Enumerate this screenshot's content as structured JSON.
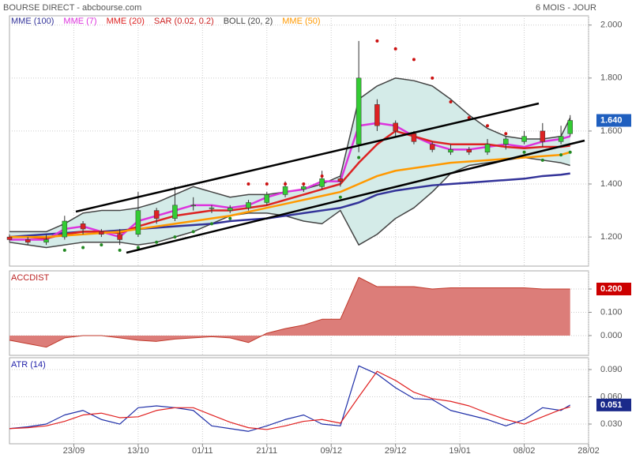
{
  "header": {
    "title": "BOURSE DIRECT - abcbourse.com",
    "period": "6 MOIS - JOUR"
  },
  "chart_data": [
    {
      "type": "candlestick",
      "x": [
        0,
        4,
        8,
        12,
        16,
        20,
        24,
        28,
        32,
        36,
        40,
        44,
        48,
        52,
        56,
        60,
        64,
        68,
        72,
        76,
        80,
        84,
        88,
        92,
        96,
        100,
        104,
        108,
        112,
        116,
        120,
        122
      ],
      "open": [
        1.2,
        1.19,
        1.18,
        1.2,
        1.25,
        1.22,
        1.21,
        1.21,
        1.3,
        1.27,
        1.32,
        1.31,
        1.3,
        1.31,
        1.33,
        1.36,
        1.38,
        1.39,
        1.42,
        1.55,
        1.7,
        1.63,
        1.59,
        1.55,
        1.52,
        1.53,
        1.52,
        1.55,
        1.56,
        1.6,
        1.56,
        1.59
      ],
      "high": [
        1.21,
        1.2,
        1.21,
        1.28,
        1.26,
        1.23,
        1.23,
        1.37,
        1.31,
        1.39,
        1.35,
        1.32,
        1.32,
        1.34,
        1.37,
        1.41,
        1.4,
        1.45,
        1.43,
        1.94,
        1.72,
        1.64,
        1.6,
        1.56,
        1.55,
        1.54,
        1.57,
        1.58,
        1.6,
        1.63,
        1.62,
        1.66
      ],
      "low": [
        1.18,
        1.17,
        1.17,
        1.19,
        1.21,
        1.2,
        1.17,
        1.2,
        1.25,
        1.26,
        1.3,
        1.29,
        1.29,
        1.3,
        1.32,
        1.35,
        1.37,
        1.38,
        1.39,
        1.52,
        1.6,
        1.58,
        1.55,
        1.52,
        1.51,
        1.51,
        1.51,
        1.53,
        1.55,
        1.54,
        1.55,
        1.58
      ],
      "close": [
        1.19,
        1.18,
        1.19,
        1.26,
        1.23,
        1.21,
        1.19,
        1.3,
        1.27,
        1.32,
        1.32,
        1.31,
        1.31,
        1.33,
        1.36,
        1.39,
        1.39,
        1.42,
        1.41,
        1.8,
        1.62,
        1.6,
        1.56,
        1.53,
        1.53,
        1.52,
        1.55,
        1.57,
        1.58,
        1.56,
        1.58,
        1.64
      ],
      "up_color": "#33cc33",
      "down_color": "#dd2222",
      "series": [
        {
          "name": "MME (100)",
          "kind": "line",
          "color": "#333399",
          "values": [
            1.2,
            1.205,
            1.21,
            1.215,
            1.22,
            1.22,
            1.225,
            1.23,
            1.235,
            1.24,
            1.245,
            1.25,
            1.26,
            1.265,
            1.27,
            1.28,
            1.29,
            1.3,
            1.31,
            1.33,
            1.36,
            1.375,
            1.385,
            1.395,
            1.4,
            1.405,
            1.41,
            1.415,
            1.42,
            1.43,
            1.435,
            1.44
          ]
        },
        {
          "name": "MME (7)",
          "kind": "line",
          "color": "#dd33dd",
          "values": [
            1.19,
            1.19,
            1.19,
            1.23,
            1.24,
            1.22,
            1.2,
            1.26,
            1.28,
            1.3,
            1.32,
            1.32,
            1.31,
            1.32,
            1.35,
            1.37,
            1.38,
            1.41,
            1.41,
            1.62,
            1.63,
            1.62,
            1.58,
            1.55,
            1.53,
            1.53,
            1.54,
            1.55,
            1.54,
            1.56,
            1.57,
            1.58
          ]
        },
        {
          "name": "MME (20)",
          "kind": "line",
          "color": "#dd2222",
          "values": [
            1.2,
            1.2,
            1.195,
            1.21,
            1.22,
            1.22,
            1.215,
            1.24,
            1.26,
            1.28,
            1.29,
            1.3,
            1.3,
            1.31,
            1.32,
            1.34,
            1.36,
            1.38,
            1.4,
            1.48,
            1.55,
            1.6,
            1.58,
            1.56,
            1.55,
            1.55,
            1.55,
            1.54,
            1.535,
            1.54,
            1.54,
            1.545
          ]
        },
        {
          "name": "SAR (0.02, 0.2)",
          "kind": "dots",
          "color": "#cc2222",
          "up_color": "#228822",
          "down_color": "#cc1111",
          "values": [
            null,
            null,
            null,
            1.15,
            1.16,
            1.17,
            1.15,
            1.16,
            1.18,
            1.2,
            1.22,
            1.25,
            1.27,
            1.4,
            1.4,
            1.4,
            1.4,
            1.43,
            1.35,
            1.5,
            1.94,
            1.91,
            1.87,
            1.8,
            1.71,
            1.65,
            1.62,
            1.59,
            1.52,
            1.49,
            1.51,
            1.52
          ]
        },
        {
          "name": "BOLL (20, 2)",
          "kind": "band",
          "color": "#444444",
          "fill": "#d4ebe8",
          "upper": [
            1.22,
            1.22,
            1.22,
            1.25,
            1.29,
            1.3,
            1.3,
            1.31,
            1.33,
            1.36,
            1.39,
            1.37,
            1.35,
            1.36,
            1.36,
            1.37,
            1.38,
            1.4,
            1.43,
            1.72,
            1.77,
            1.8,
            1.79,
            1.77,
            1.72,
            1.66,
            1.61,
            1.58,
            1.57,
            1.57,
            1.58,
            1.65
          ],
          "lower": [
            1.18,
            1.17,
            1.16,
            1.17,
            1.18,
            1.18,
            1.18,
            1.17,
            1.18,
            1.2,
            1.22,
            1.25,
            1.28,
            1.29,
            1.29,
            1.28,
            1.26,
            1.25,
            1.3,
            1.17,
            1.21,
            1.27,
            1.31,
            1.37,
            1.44,
            1.47,
            1.48,
            1.49,
            1.5,
            1.49,
            1.48,
            1.47
          ]
        },
        {
          "name": "MME (50)",
          "kind": "line",
          "color": "#ff9900",
          "values": [
            1.2,
            1.2,
            1.2,
            1.205,
            1.21,
            1.215,
            1.22,
            1.23,
            1.24,
            1.25,
            1.26,
            1.27,
            1.28,
            1.295,
            1.31,
            1.325,
            1.34,
            1.355,
            1.37,
            1.4,
            1.43,
            1.45,
            1.46,
            1.47,
            1.48,
            1.485,
            1.49,
            1.495,
            1.5,
            1.505,
            1.51,
            1.52
          ]
        }
      ],
      "xlim": [
        0,
        126
      ],
      "ylim": [
        1.09,
        2.035
      ],
      "yticks": [
        {
          "value": 1.2,
          "label": "1.200"
        },
        {
          "value": 1.4,
          "label": "1.400"
        },
        {
          "value": 1.6,
          "label": "1.600"
        },
        {
          "value": 1.8,
          "label": "1.800"
        },
        {
          "value": 2.0,
          "label": "2.000"
        }
      ],
      "last_value": {
        "value": 1.64,
        "label": "1.640"
      },
      "last_color": "#1f5fbf",
      "grid": true
    },
    {
      "type": "area",
      "label": "ACCDIST",
      "color": "#c0392b",
      "fill": "#dc7d79",
      "x": [
        0,
        4,
        8,
        12,
        16,
        20,
        24,
        28,
        32,
        36,
        40,
        44,
        48,
        52,
        56,
        60,
        64,
        68,
        72,
        76,
        80,
        84,
        88,
        92,
        96,
        100,
        104,
        108,
        112,
        116,
        120,
        122
      ],
      "values": [
        -0.02,
        -0.035,
        -0.05,
        -0.01,
        0,
        0,
        -0.01,
        -0.02,
        -0.025,
        -0.015,
        -0.01,
        -0.005,
        -0.01,
        -0.03,
        0.01,
        0.03,
        0.045,
        0.07,
        0.07,
        0.25,
        0.21,
        0.21,
        0.21,
        0.2,
        0.205,
        0.205,
        0.205,
        0.205,
        0.205,
        0.2,
        0.2,
        0.2
      ],
      "xlim": [
        0,
        126
      ],
      "ylim": [
        -0.085,
        0.278
      ],
      "yticks": [
        {
          "value": 0,
          "label": "0.000"
        },
        {
          "value": 0.1,
          "label": "0.100"
        },
        {
          "value": 0.2,
          "label": "0.200"
        }
      ],
      "last_value": {
        "value": 0.2,
        "label": "0.200"
      },
      "last_color": "#cc0000",
      "grid": true
    },
    {
      "type": "line",
      "label": "ATR (14)",
      "x": [
        0,
        4,
        8,
        12,
        16,
        20,
        24,
        28,
        32,
        36,
        40,
        44,
        48,
        52,
        56,
        60,
        64,
        68,
        72,
        76,
        80,
        84,
        88,
        92,
        96,
        100,
        104,
        108,
        112,
        116,
        120,
        122
      ],
      "series": [
        {
          "color": "#1f2fa8",
          "values": [
            0.025,
            0.027,
            0.03,
            0.04,
            0.045,
            0.035,
            0.03,
            0.048,
            0.05,
            0.048,
            0.045,
            0.028,
            0.025,
            0.022,
            0.028,
            0.035,
            0.04,
            0.03,
            0.028,
            0.094,
            0.085,
            0.07,
            0.058,
            0.057,
            0.045,
            0.04,
            0.035,
            0.028,
            0.035,
            0.048,
            0.045,
            0.051
          ]
        },
        {
          "color": "#e02020",
          "values": [
            0.025,
            0.026,
            0.028,
            0.033,
            0.04,
            0.042,
            0.037,
            0.038,
            0.045,
            0.048,
            0.048,
            0.04,
            0.032,
            0.026,
            0.024,
            0.028,
            0.033,
            0.035,
            0.031,
            0.06,
            0.088,
            0.078,
            0.065,
            0.058,
            0.055,
            0.05,
            0.042,
            0.035,
            0.03,
            0.038,
            0.046,
            0.049
          ]
        }
      ],
      "xlim": [
        0,
        126
      ],
      "ylim": [
        0.0083,
        0.103
      ],
      "xticks": [
        {
          "value": 14,
          "label": "23/09"
        },
        {
          "value": 28,
          "label": "13/10"
        },
        {
          "value": 42,
          "label": "01/11"
        },
        {
          "value": 56,
          "label": "21/11"
        },
        {
          "value": 70,
          "label": "09/12"
        },
        {
          "value": 84,
          "label": "29/12"
        },
        {
          "value": 98,
          "label": "19/01"
        },
        {
          "value": 112,
          "label": "08/02"
        },
        {
          "value": 126,
          "label": "28/02"
        }
      ],
      "yticks": [
        {
          "value": 0.03,
          "label": "0.030"
        },
        {
          "value": 0.06,
          "label": "0.060"
        },
        {
          "value": 0.09,
          "label": "0.090"
        }
      ],
      "last_value": {
        "value": 0.051,
        "label": "0.051"
      },
      "last_color": "#1a2a8a",
      "grid": true
    }
  ]
}
